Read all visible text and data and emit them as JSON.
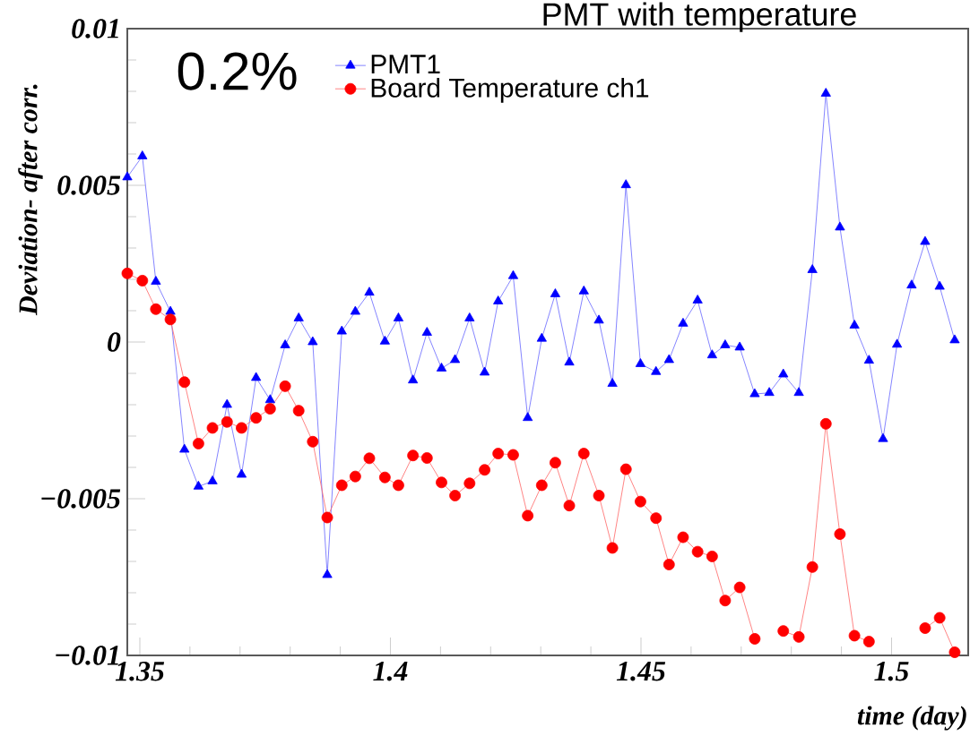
{
  "chart_data": {
    "type": "line",
    "title": "PMT with temperature",
    "xlabel": "time (day)",
    "ylabel": "Deviation- after corr.",
    "annotations": [
      "0.2%"
    ],
    "x": [
      1.3475,
      1.3505,
      1.3532,
      1.3561,
      1.3589,
      1.3617,
      1.3645,
      1.3674,
      1.3703,
      1.3732,
      1.376,
      1.379,
      1.3817,
      1.3845,
      1.3874,
      1.3903,
      1.393,
      1.3958,
      1.3989,
      1.4016,
      1.4045,
      1.4073,
      1.4102,
      1.4129,
      1.4158,
      1.4188,
      1.4215,
      1.4245,
      1.4274,
      1.4302,
      1.4329,
      1.4357,
      1.4386,
      1.4416,
      1.4443,
      1.447,
      1.4499,
      1.453,
      1.4556,
      1.4584,
      1.4613,
      1.4642,
      1.4668,
      1.4697,
      1.4727,
      1.4756,
      1.4784,
      1.4815,
      1.4842,
      1.4869,
      1.4897,
      1.4926,
      1.4955,
      1.4983,
      1.5011,
      1.504,
      1.5067,
      1.5096,
      1.5126
    ],
    "series": [
      {
        "name": "PMT1",
        "color": "#0000ff",
        "marker": "triangle",
        "values": [
          0.00526,
          0.00593,
          0.00193,
          0.00097,
          -0.00343,
          -0.00461,
          -0.00444,
          -0.002,
          -0.00423,
          -0.00114,
          -0.00185,
          -0.0001,
          0.00076,
          0.0,
          -0.00743,
          0.00034,
          0.00097,
          0.00158,
          2e-05,
          0.00076,
          -0.00122,
          0.0003,
          -0.00084,
          -0.00057,
          0.00076,
          -0.00097,
          0.0013,
          0.00211,
          -0.00242,
          0.00011,
          0.00153,
          -0.00065,
          0.00162,
          0.00069,
          -0.00133,
          0.00501,
          -0.0007,
          -0.00095,
          -0.00057,
          0.00059,
          0.00133,
          -0.00042,
          -0.0001,
          -0.00017,
          -0.00166,
          -0.00162,
          -0.00103,
          -0.00162,
          0.0023,
          0.00793,
          0.00366,
          0.00053,
          -0.00059,
          -0.00309,
          -8e-05,
          0.00181,
          0.0032,
          0.00177,
          6e-05
        ]
      },
      {
        "name": "Board Temperature ch1",
        "color": "#ff0000",
        "marker": "circle",
        "values": [
          0.00219,
          0.00196,
          0.00105,
          0.00072,
          -0.00128,
          -0.00324,
          -0.00274,
          -0.00255,
          -0.00274,
          -0.00242,
          -0.00213,
          -0.00141,
          -0.00219,
          -0.00318,
          -0.0056,
          -0.00457,
          -0.00429,
          -0.00371,
          -0.00432,
          -0.00457,
          -0.00362,
          -0.0037,
          -0.00448,
          -0.0049,
          -0.00451,
          -0.00408,
          -0.00356,
          -0.0036,
          -0.00554,
          -0.00457,
          -0.00385,
          -0.00522,
          -0.00356,
          -0.0049,
          -0.00657,
          -0.00406,
          -0.00509,
          -0.00562,
          -0.0071,
          -0.00623,
          -0.00669,
          -0.00684,
          -0.00825,
          -0.00783,
          -0.00947,
          null,
          -0.00922,
          -0.00941,
          -0.00718,
          -0.00261,
          -0.00613,
          -0.00937,
          -0.00956,
          null,
          null,
          null,
          -0.00913,
          -0.0088,
          -0.0099
        ]
      }
    ],
    "xlim": [
      1.3475,
      1.5153
    ],
    "ylim": [
      -0.01,
      0.01
    ],
    "xticks": [
      1.35,
      1.4,
      1.45,
      1.5
    ],
    "yticks": [
      {
        "value": -0.01,
        "label": "−0.01"
      },
      {
        "value": -0.005,
        "label": "−0.005"
      },
      0,
      0.005,
      0.01
    ],
    "legend": "top left"
  }
}
